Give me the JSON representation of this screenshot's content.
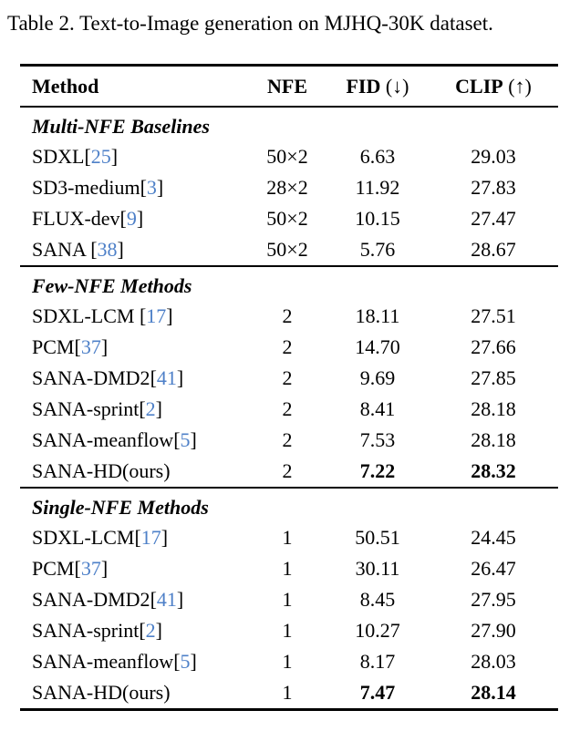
{
  "caption": "Table 2. Text-to-Image generation on MJHQ-30K dataset.",
  "colors": {
    "citation_blue": "#4e80c8",
    "text": "#000000",
    "rule": "#000000"
  },
  "table": {
    "columns": [
      {
        "label": "Method",
        "suffix": ""
      },
      {
        "label": "NFE",
        "suffix": ""
      },
      {
        "label": "FID",
        "suffix": " (↓)"
      },
      {
        "label": "CLIP",
        "suffix": " (↑)"
      }
    ],
    "sections": [
      {
        "id": "multi-nfe-baselines",
        "title": "Multi-NFE Baselines",
        "rows": [
          {
            "name": "SDXL",
            "cite": "25",
            "nfe": "50×2",
            "fid": "6.63",
            "clip": "29.03",
            "bold_fid": false,
            "bold_clip": false
          },
          {
            "name": "SD3-medium",
            "cite": "3",
            "nfe": "28×2",
            "fid": "11.92",
            "clip": "27.83",
            "bold_fid": false,
            "bold_clip": false
          },
          {
            "name": "FLUX-dev",
            "cite": "9",
            "nfe": "50×2",
            "fid": "10.15",
            "clip": "27.47",
            "bold_fid": false,
            "bold_clip": false
          },
          {
            "name": "SANA ",
            "cite": "38",
            "nfe": "50×2",
            "fid": "5.76",
            "clip": "28.67",
            "bold_fid": false,
            "bold_clip": false
          }
        ]
      },
      {
        "id": "few-nfe-methods",
        "title": "Few-NFE Methods",
        "rows": [
          {
            "name": "SDXL-LCM ",
            "cite": "17",
            "nfe": "2",
            "fid": "18.11",
            "clip": "27.51",
            "bold_fid": false,
            "bold_clip": false
          },
          {
            "name": "PCM",
            "cite": "37",
            "nfe": "2",
            "fid": "14.70",
            "clip": "27.66",
            "bold_fid": false,
            "bold_clip": false
          },
          {
            "name": "SANA-DMD2",
            "cite": "41",
            "nfe": "2",
            "fid": "9.69",
            "clip": "27.85",
            "bold_fid": false,
            "bold_clip": false
          },
          {
            "name": "SANA-sprint",
            "cite": "2",
            "nfe": "2",
            "fid": "8.41",
            "clip": "28.18",
            "bold_fid": false,
            "bold_clip": false
          },
          {
            "name": "SANA-meanflow",
            "cite": "5",
            "nfe": "2",
            "fid": "7.53",
            "clip": "28.18",
            "bold_fid": false,
            "bold_clip": false
          },
          {
            "name": "SANA-HD(ours)",
            "cite": null,
            "nfe": "2",
            "fid": "7.22",
            "clip": "28.32",
            "bold_fid": true,
            "bold_clip": true
          }
        ]
      },
      {
        "id": "single-nfe-methods",
        "title": "Single-NFE Methods",
        "rows": [
          {
            "name": "SDXL-LCM",
            "cite": "17",
            "nfe": "1",
            "fid": "50.51",
            "clip": "24.45",
            "bold_fid": false,
            "bold_clip": false
          },
          {
            "name": "PCM",
            "cite": "37",
            "nfe": "1",
            "fid": "30.11",
            "clip": "26.47",
            "bold_fid": false,
            "bold_clip": false
          },
          {
            "name": "SANA-DMD2",
            "cite": "41",
            "nfe": "1",
            "fid": "8.45",
            "clip": "27.95",
            "bold_fid": false,
            "bold_clip": false
          },
          {
            "name": "SANA-sprint",
            "cite": "2",
            "nfe": "1",
            "fid": "10.27",
            "clip": "27.90",
            "bold_fid": false,
            "bold_clip": false
          },
          {
            "name": "SANA-meanflow",
            "cite": "5",
            "nfe": "1",
            "fid": "8.17",
            "clip": "28.03",
            "bold_fid": false,
            "bold_clip": false
          },
          {
            "name": "SANA-HD(ours)",
            "cite": null,
            "nfe": "1",
            "fid": "7.47",
            "clip": "28.14",
            "bold_fid": true,
            "bold_clip": true
          }
        ]
      }
    ]
  }
}
